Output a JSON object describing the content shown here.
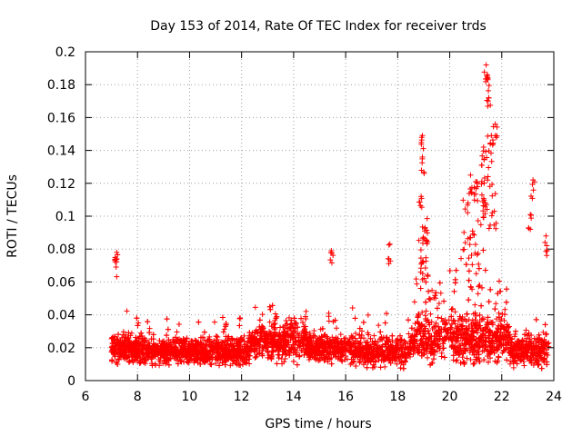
{
  "chart_data": {
    "type": "scatter",
    "title": "Day 153 of 2014, Rate Of TEC Index for receiver trds",
    "xlabel": "GPS time / hours",
    "ylabel": "ROTI / TECUs",
    "xlim": [
      6,
      24
    ],
    "ylim": [
      0,
      0.2
    ],
    "xticks": [
      6,
      8,
      10,
      12,
      14,
      16,
      18,
      20,
      22,
      24
    ],
    "xtick_labels": [
      "6",
      "8",
      "10",
      "12",
      "14",
      "16",
      "18",
      "20",
      "22",
      "24"
    ],
    "yticks": [
      0,
      0.02,
      0.04,
      0.06,
      0.08,
      0.1,
      0.12,
      0.14,
      0.16,
      0.18,
      0.2
    ],
    "ytick_labels": [
      "0",
      "0.02",
      "0.04",
      "0.06",
      "0.08",
      "0.1",
      "0.12",
      "0.14",
      "0.16",
      "0.18",
      "0.2"
    ],
    "grid": true,
    "marker": "+",
    "color": "#ff0000",
    "series": [
      {
        "name": "ROTI",
        "x_range": [
          7.0,
          23.8
        ],
        "typical_y_range": [
          0.005,
          0.045
        ],
        "notable_points": [
          {
            "x": 7.2,
            "y": 0.078
          },
          {
            "x": 7.2,
            "y": 0.074
          },
          {
            "x": 15.45,
            "y": 0.079
          },
          {
            "x": 17.7,
            "y": 0.083
          },
          {
            "x": 18.95,
            "y": 0.149
          },
          {
            "x": 18.95,
            "y": 0.136
          },
          {
            "x": 18.9,
            "y": 0.112
          },
          {
            "x": 19.05,
            "y": 0.093
          },
          {
            "x": 21.4,
            "y": 0.192
          },
          {
            "x": 21.45,
            "y": 0.186
          },
          {
            "x": 21.5,
            "y": 0.172
          },
          {
            "x": 21.6,
            "y": 0.149
          },
          {
            "x": 21.75,
            "y": 0.156
          },
          {
            "x": 21.3,
            "y": 0.142
          },
          {
            "x": 21.0,
            "y": 0.121
          },
          {
            "x": 20.8,
            "y": 0.125
          },
          {
            "x": 23.1,
            "y": 0.101
          },
          {
            "x": 23.2,
            "y": 0.122
          },
          {
            "x": 23.7,
            "y": 0.088
          }
        ]
      }
    ]
  }
}
